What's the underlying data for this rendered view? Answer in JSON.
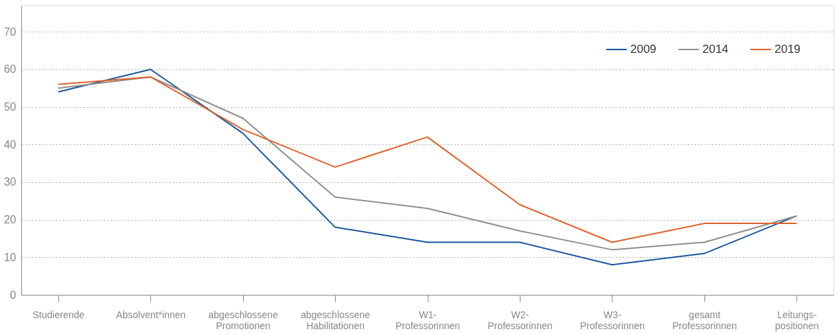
{
  "chart_data": {
    "type": "line",
    "categories": [
      "Studierende",
      "Absolvent*innen",
      "abgeschlossene\nPromotionen",
      "abgeschlossene\nHabilitationen",
      "W1-\nProfessorinnen",
      "W2-\nProfessorinnen",
      "W3-\nProfessorinnen",
      "gesamt\nProfessorinnen",
      "Leitungs-\npositionen"
    ],
    "series": [
      {
        "name": "2009",
        "color": "#1a56a0",
        "values": [
          54,
          60,
          43,
          18,
          14,
          14,
          8,
          11,
          21
        ]
      },
      {
        "name": "2014",
        "color": "#8e8e8a",
        "values": [
          55,
          58,
          47,
          26,
          23,
          17,
          12,
          14,
          21
        ]
      },
      {
        "name": "2019",
        "color": "#e0622a",
        "values": [
          56,
          58,
          44,
          34,
          42,
          24,
          14,
          19,
          19
        ]
      }
    ],
    "ylim": [
      0,
      77
    ],
    "yticks": [
      0,
      10,
      20,
      30,
      40,
      50,
      60,
      70
    ],
    "grid": "y",
    "legend": "top right",
    "marker": "none",
    "line_style": "solid"
  }
}
